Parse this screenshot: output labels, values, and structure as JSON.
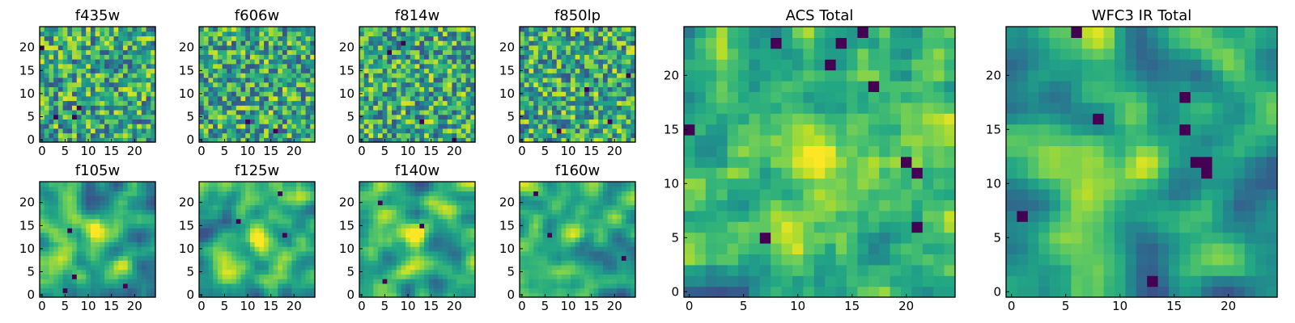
{
  "colormap": "viridis",
  "colors": {
    "frame": "#000000",
    "background": "#ffffff"
  },
  "chart_data": [
    {
      "type": "heatmap",
      "title": "f435w",
      "grid_size": 25,
      "xticks": [
        "0",
        "5",
        "10",
        "15",
        "20"
      ],
      "yticks": [
        "0",
        "5",
        "10",
        "15",
        "20"
      ],
      "seed": 11,
      "smooth": 0,
      "blobs": [],
      "dark_spots": [
        [
          8,
          7
        ],
        [
          7,
          5
        ],
        [
          3,
          5
        ],
        [
          0,
          20
        ]
      ]
    },
    {
      "type": "heatmap",
      "title": "f606w",
      "grid_size": 25,
      "xticks": [
        "0",
        "5",
        "10",
        "15",
        "20"
      ],
      "yticks": [
        "0",
        "5",
        "10",
        "15",
        "20"
      ],
      "seed": 23,
      "smooth": 0,
      "blobs": [],
      "dark_spots": [
        [
          10,
          4
        ],
        [
          16,
          2
        ]
      ]
    },
    {
      "type": "heatmap",
      "title": "f814w",
      "grid_size": 25,
      "xticks": [
        "0",
        "5",
        "10",
        "15",
        "20"
      ],
      "yticks": [
        "0",
        "5",
        "10",
        "15",
        "20"
      ],
      "seed": 37,
      "smooth": 0,
      "blobs": [],
      "dark_spots": [
        [
          6,
          19
        ],
        [
          9,
          21
        ],
        [
          13,
          4
        ],
        [
          20,
          0
        ]
      ]
    },
    {
      "type": "heatmap",
      "title": "f850lp",
      "grid_size": 25,
      "xticks": [
        "0",
        "5",
        "10",
        "15",
        "20"
      ],
      "yticks": [
        "0",
        "5",
        "10",
        "15",
        "20"
      ],
      "seed": 41,
      "smooth": 0,
      "blobs": [],
      "dark_spots": [
        [
          19,
          4
        ],
        [
          14,
          11
        ],
        [
          8,
          2
        ],
        [
          23,
          14
        ]
      ]
    },
    {
      "type": "heatmap",
      "title": "f105w",
      "grid_size": 25,
      "xticks": [
        "0",
        "5",
        "10",
        "15",
        "20"
      ],
      "yticks": [
        "0",
        "5",
        "10",
        "15",
        "20"
      ],
      "seed": 53,
      "smooth": 2,
      "blobs": [
        [
          12,
          13,
          0.35
        ]
      ],
      "dark_spots": [
        [
          6,
          14
        ],
        [
          18,
          2
        ],
        [
          7,
          4
        ],
        [
          5,
          1
        ]
      ]
    },
    {
      "type": "heatmap",
      "title": "f125w",
      "grid_size": 25,
      "xticks": [
        "0",
        "5",
        "10",
        "15",
        "20"
      ],
      "yticks": [
        "0",
        "5",
        "10",
        "15",
        "20"
      ],
      "seed": 67,
      "smooth": 2,
      "blobs": [
        [
          12,
          13,
          0.35
        ]
      ],
      "dark_spots": [
        [
          17,
          22
        ],
        [
          18,
          13
        ],
        [
          8,
          16
        ]
      ]
    },
    {
      "type": "heatmap",
      "title": "f140w",
      "grid_size": 25,
      "xticks": [
        "0",
        "5",
        "10",
        "15",
        "20"
      ],
      "yticks": [
        "0",
        "5",
        "10",
        "15",
        "20"
      ],
      "seed": 71,
      "smooth": 2,
      "blobs": [
        [
          12,
          13,
          0.35
        ]
      ],
      "dark_spots": [
        [
          13,
          15
        ],
        [
          4,
          20
        ],
        [
          5,
          3
        ]
      ]
    },
    {
      "type": "heatmap",
      "title": "f160w",
      "grid_size": 25,
      "xticks": [
        "0",
        "5",
        "10",
        "15",
        "20"
      ],
      "yticks": [
        "0",
        "5",
        "10",
        "15",
        "20"
      ],
      "seed": 83,
      "smooth": 2,
      "blobs": [
        [
          12,
          13,
          0.4
        ]
      ],
      "dark_spots": [
        [
          22,
          8
        ],
        [
          3,
          22
        ],
        [
          6,
          13
        ]
      ]
    },
    {
      "type": "heatmap",
      "title": "ACS Total",
      "grid_size": 25,
      "xticks": [
        "0",
        "5",
        "10",
        "15",
        "20"
      ],
      "yticks": [
        "0",
        "5",
        "10",
        "15",
        "20"
      ],
      "seed": 97,
      "smooth": 1,
      "blobs": [
        [
          12,
          12,
          0.35
        ]
      ],
      "dark_spots": [
        [
          8,
          23
        ],
        [
          16,
          24
        ],
        [
          14,
          23
        ],
        [
          13,
          21
        ],
        [
          17,
          19
        ],
        [
          20,
          12
        ],
        [
          21,
          11
        ],
        [
          0,
          15
        ],
        [
          7,
          5
        ],
        [
          21,
          6
        ]
      ]
    },
    {
      "type": "heatmap",
      "title": "WFC3 IR Total",
      "grid_size": 25,
      "xticks": [
        "0",
        "5",
        "10",
        "15",
        "20"
      ],
      "yticks": [
        "0",
        "5",
        "10",
        "15",
        "20"
      ],
      "seed": 101,
      "smooth": 2,
      "blobs": [
        [
          12,
          12,
          0.45
        ]
      ],
      "dark_spots": [
        [
          18,
          12
        ],
        [
          17,
          12
        ],
        [
          18,
          11
        ],
        [
          8,
          16
        ],
        [
          16,
          15
        ],
        [
          16,
          18
        ],
        [
          13,
          1
        ],
        [
          1,
          7
        ],
        [
          6,
          24
        ]
      ]
    }
  ]
}
